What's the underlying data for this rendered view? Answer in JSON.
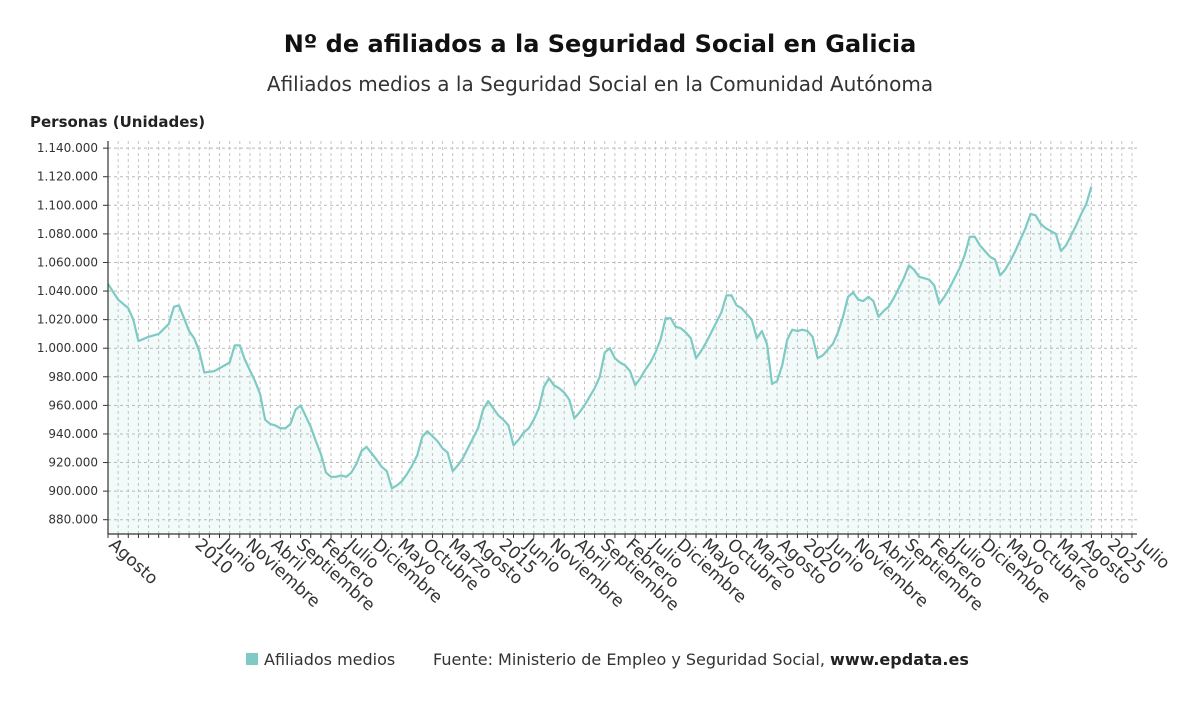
{
  "title": "Nº de afiliados a la Seguridad Social en Galicia",
  "subtitle": "Afiliados medios a la Seguridad Social en la Comunidad Autónoma",
  "legend": {
    "label": "Afiliados medios",
    "color": "#7ecac4"
  },
  "source": {
    "text": "Fuente: Ministerio de Empleo y Seguridad Social, ",
    "site": "www.epdata.es"
  },
  "chart_data": {
    "type": "area",
    "ylabel": "Personas (Unidades)",
    "ylim": [
      870000,
      1145000
    ],
    "yticks": [
      880000,
      900000,
      920000,
      940000,
      960000,
      980000,
      1000000,
      1020000,
      1040000,
      1060000,
      1080000,
      1100000,
      1120000,
      1140000
    ],
    "ytick_labels": [
      "880.000",
      "900.000",
      "920.000",
      "940.000",
      "960.000",
      "980.000",
      "1.000.000",
      "1.020.000",
      "1.040.000",
      "1.060.000",
      "1.080.000",
      "1.100.000",
      "1.120.000",
      "1.140.000"
    ],
    "xlim": [
      "2008-08",
      "2025-07"
    ],
    "xticks": [
      {
        "date": "2008-08",
        "label": "Agosto"
      },
      {
        "date": "2010-01",
        "label": "2010"
      },
      {
        "date": "2010-06",
        "label": "Junio"
      },
      {
        "date": "2010-11",
        "label": "Noviembre"
      },
      {
        "date": "2011-04",
        "label": "Abril"
      },
      {
        "date": "2011-09",
        "label": "Septiembre"
      },
      {
        "date": "2012-02",
        "label": "Febrero"
      },
      {
        "date": "2012-07",
        "label": "Julio"
      },
      {
        "date": "2012-12",
        "label": "Diciembre"
      },
      {
        "date": "2013-05",
        "label": "Mayo"
      },
      {
        "date": "2013-10",
        "label": "Octubre"
      },
      {
        "date": "2014-03",
        "label": "Marzo"
      },
      {
        "date": "2014-08",
        "label": "Agosto"
      },
      {
        "date": "2015-01",
        "label": "2015"
      },
      {
        "date": "2015-06",
        "label": "Junio"
      },
      {
        "date": "2015-11",
        "label": "Noviembre"
      },
      {
        "date": "2016-04",
        "label": "Abril"
      },
      {
        "date": "2016-09",
        "label": "Septiembre"
      },
      {
        "date": "2017-02",
        "label": "Febrero"
      },
      {
        "date": "2017-07",
        "label": "Julio"
      },
      {
        "date": "2017-12",
        "label": "Diciembre"
      },
      {
        "date": "2018-05",
        "label": "Mayo"
      },
      {
        "date": "2018-10",
        "label": "Octubre"
      },
      {
        "date": "2019-03",
        "label": "Marzo"
      },
      {
        "date": "2019-08",
        "label": "Agosto"
      },
      {
        "date": "2020-01",
        "label": "2020"
      },
      {
        "date": "2020-06",
        "label": "Junio"
      },
      {
        "date": "2020-11",
        "label": "Noviembre"
      },
      {
        "date": "2021-04",
        "label": "Abril"
      },
      {
        "date": "2021-09",
        "label": "Septiembre"
      },
      {
        "date": "2022-02",
        "label": "Febrero"
      },
      {
        "date": "2022-07",
        "label": "Julio"
      },
      {
        "date": "2022-12",
        "label": "Diciembre"
      },
      {
        "date": "2023-05",
        "label": "Mayo"
      },
      {
        "date": "2023-10",
        "label": "Octubre"
      },
      {
        "date": "2024-03",
        "label": "Marzo"
      },
      {
        "date": "2024-08",
        "label": "Agosto"
      },
      {
        "date": "2025-01",
        "label": "2025"
      },
      {
        "date": "2025-07",
        "label": "Julio"
      }
    ],
    "series": [
      {
        "name": "Afiliados medios",
        "color": "#7ecac4",
        "points": [
          [
            "2008-08",
            1045000
          ],
          [
            "2008-10",
            1034000
          ],
          [
            "2008-12",
            1028000
          ],
          [
            "2009-01",
            1020000
          ],
          [
            "2009-02",
            1005000
          ],
          [
            "2009-04",
            1008000
          ],
          [
            "2009-06",
            1010000
          ],
          [
            "2009-08",
            1017000
          ],
          [
            "2009-09",
            1029000
          ],
          [
            "2009-10",
            1030000
          ],
          [
            "2009-12",
            1012000
          ],
          [
            "2010-01",
            1007000
          ],
          [
            "2010-02",
            998000
          ],
          [
            "2010-03",
            983000
          ],
          [
            "2010-05",
            984000
          ],
          [
            "2010-07",
            988000
          ],
          [
            "2010-08",
            990000
          ],
          [
            "2010-09",
            1002000
          ],
          [
            "2010-10",
            1002000
          ],
          [
            "2010-11",
            992000
          ],
          [
            "2011-01",
            977000
          ],
          [
            "2011-02",
            968000
          ],
          [
            "2011-03",
            950000
          ],
          [
            "2011-04",
            947000
          ],
          [
            "2011-05",
            946000
          ],
          [
            "2011-06",
            944000
          ],
          [
            "2011-07",
            944000
          ],
          [
            "2011-08",
            947000
          ],
          [
            "2011-09",
            957000
          ],
          [
            "2011-10",
            960000
          ],
          [
            "2011-12",
            945000
          ],
          [
            "2012-01",
            935000
          ],
          [
            "2012-02",
            926000
          ],
          [
            "2012-03",
            913000
          ],
          [
            "2012-04",
            910000
          ],
          [
            "2012-05",
            910000
          ],
          [
            "2012-06",
            911000
          ],
          [
            "2012-07",
            910000
          ],
          [
            "2012-08",
            913000
          ],
          [
            "2012-09",
            919000
          ],
          [
            "2012-10",
            928000
          ],
          [
            "2012-11",
            931000
          ],
          [
            "2013-01",
            922000
          ],
          [
            "2013-02",
            917000
          ],
          [
            "2013-03",
            914000
          ],
          [
            "2013-04",
            902000
          ],
          [
            "2013-05",
            904000
          ],
          [
            "2013-06",
            907000
          ],
          [
            "2013-07",
            912000
          ],
          [
            "2013-08",
            918000
          ],
          [
            "2013-09",
            925000
          ],
          [
            "2013-10",
            938000
          ],
          [
            "2013-11",
            942000
          ],
          [
            "2014-01",
            935000
          ],
          [
            "2014-02",
            930000
          ],
          [
            "2014-03",
            927000
          ],
          [
            "2014-04",
            914000
          ],
          [
            "2014-05",
            918000
          ],
          [
            "2014-06",
            923000
          ],
          [
            "2014-07",
            930000
          ],
          [
            "2014-08",
            937000
          ],
          [
            "2014-09",
            944000
          ],
          [
            "2014-10",
            957000
          ],
          [
            "2014-11",
            963000
          ],
          [
            "2015-01",
            953000
          ],
          [
            "2015-02",
            950000
          ],
          [
            "2015-03",
            946000
          ],
          [
            "2015-04",
            932000
          ],
          [
            "2015-05",
            936000
          ],
          [
            "2015-06",
            941000
          ],
          [
            "2015-07",
            944000
          ],
          [
            "2015-08",
            950000
          ],
          [
            "2015-09",
            958000
          ],
          [
            "2015-10",
            973000
          ],
          [
            "2015-11",
            979000
          ],
          [
            "2015-12",
            974000
          ],
          [
            "2016-01",
            972000
          ],
          [
            "2016-02",
            969000
          ],
          [
            "2016-03",
            964000
          ],
          [
            "2016-04",
            951000
          ],
          [
            "2016-05",
            955000
          ],
          [
            "2016-06",
            960000
          ],
          [
            "2016-07",
            966000
          ],
          [
            "2016-08",
            972000
          ],
          [
            "2016-09",
            980000
          ],
          [
            "2016-10",
            997000
          ],
          [
            "2016-11",
            1000000
          ],
          [
            "2016-12",
            993000
          ],
          [
            "2017-01",
            990000
          ],
          [
            "2017-02",
            988000
          ],
          [
            "2017-03",
            984000
          ],
          [
            "2017-04",
            974000
          ],
          [
            "2017-05",
            979000
          ],
          [
            "2017-06",
            985000
          ],
          [
            "2017-07",
            990000
          ],
          [
            "2017-08",
            997000
          ],
          [
            "2017-09",
            1006000
          ],
          [
            "2017-10",
            1021000
          ],
          [
            "2017-11",
            1021000
          ],
          [
            "2017-12",
            1015000
          ],
          [
            "2018-01",
            1014000
          ],
          [
            "2018-02",
            1011000
          ],
          [
            "2018-03",
            1007000
          ],
          [
            "2018-04",
            993000
          ],
          [
            "2018-05",
            998000
          ],
          [
            "2018-06",
            1004000
          ],
          [
            "2018-07",
            1011000
          ],
          [
            "2018-08",
            1018000
          ],
          [
            "2018-09",
            1025000
          ],
          [
            "2018-10",
            1037000
          ],
          [
            "2018-11",
            1037000
          ],
          [
            "2018-12",
            1030000
          ],
          [
            "2019-01",
            1028000
          ],
          [
            "2019-02",
            1024000
          ],
          [
            "2019-03",
            1020000
          ],
          [
            "2019-04",
            1007000
          ],
          [
            "2019-05",
            1012000
          ],
          [
            "2019-06",
            1003000
          ],
          [
            "2019-07",
            975000
          ],
          [
            "2019-08",
            977000
          ],
          [
            "2019-09",
            988000
          ],
          [
            "2019-10",
            1006000
          ],
          [
            "2019-11",
            1013000
          ],
          [
            "2019-12",
            1012000
          ],
          [
            "2020-01",
            1013000
          ],
          [
            "2020-02",
            1012000
          ],
          [
            "2020-03",
            1008000
          ],
          [
            "2020-04",
            993000
          ],
          [
            "2020-05",
            995000
          ],
          [
            "2020-06",
            999000
          ],
          [
            "2020-07",
            1003000
          ],
          [
            "2020-08",
            1011000
          ],
          [
            "2020-09",
            1022000
          ],
          [
            "2020-10",
            1036000
          ],
          [
            "2020-11",
            1039000
          ],
          [
            "2020-12",
            1034000
          ],
          [
            "2021-01",
            1033000
          ],
          [
            "2021-02",
            1036000
          ],
          [
            "2021-03",
            1033000
          ],
          [
            "2021-04",
            1022000
          ],
          [
            "2021-05",
            1026000
          ],
          [
            "2021-06",
            1029000
          ],
          [
            "2021-07",
            1035000
          ],
          [
            "2021-08",
            1042000
          ],
          [
            "2021-09",
            1049000
          ],
          [
            "2021-10",
            1058000
          ],
          [
            "2021-11",
            1055000
          ],
          [
            "2021-12",
            1050000
          ],
          [
            "2022-01",
            1049000
          ],
          [
            "2022-02",
            1048000
          ],
          [
            "2022-03",
            1044000
          ],
          [
            "2022-04",
            1031000
          ],
          [
            "2022-05",
            1036000
          ],
          [
            "2022-06",
            1042000
          ],
          [
            "2022-07",
            1049000
          ],
          [
            "2022-08",
            1056000
          ],
          [
            "2022-09",
            1065000
          ],
          [
            "2022-10",
            1078000
          ],
          [
            "2022-11",
            1078000
          ],
          [
            "2022-12",
            1072000
          ],
          [
            "2023-01",
            1068000
          ],
          [
            "2023-02",
            1064000
          ],
          [
            "2023-03",
            1062000
          ],
          [
            "2023-04",
            1051000
          ],
          [
            "2023-05",
            1055000
          ],
          [
            "2023-06",
            1061000
          ],
          [
            "2023-07",
            1068000
          ],
          [
            "2023-08",
            1076000
          ],
          [
            "2023-09",
            1084000
          ],
          [
            "2023-10",
            1094000
          ],
          [
            "2023-11",
            1093000
          ],
          [
            "2023-12",
            1087000
          ],
          [
            "2024-01",
            1084000
          ],
          [
            "2024-02",
            1082000
          ],
          [
            "2024-03",
            1080000
          ],
          [
            "2024-04",
            1068000
          ],
          [
            "2024-05",
            1072000
          ],
          [
            "2024-06",
            1079000
          ],
          [
            "2024-07",
            1086000
          ],
          [
            "2024-08",
            1094000
          ],
          [
            "2024-09",
            1101000
          ],
          [
            "2024-10",
            1113000
          ]
        ]
      }
    ]
  }
}
